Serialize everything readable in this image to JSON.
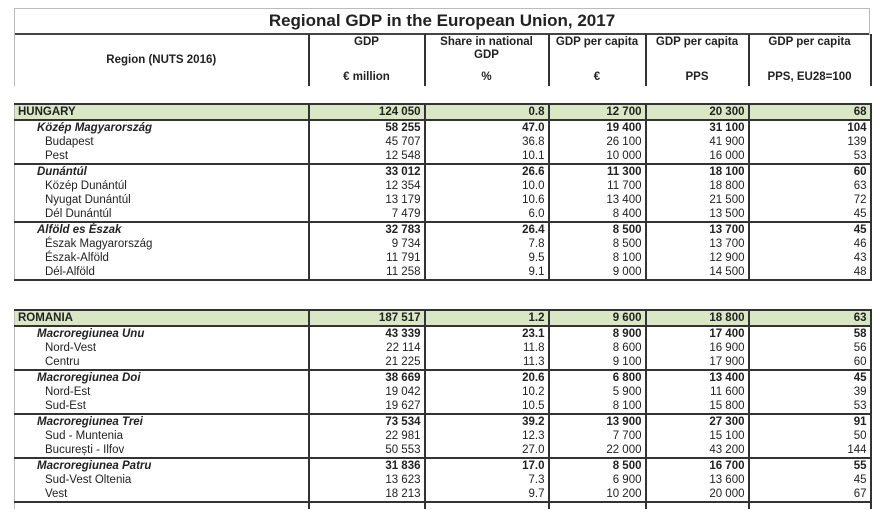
{
  "title": "Regional GDP in the European Union, 2017",
  "columns": [
    {
      "label": "Region (NUTS 2016)",
      "unit": ""
    },
    {
      "label": "GDP",
      "unit": "€ million"
    },
    {
      "label": "Share in national GDP",
      "unit": "%"
    },
    {
      "label": "GDP per capita",
      "unit": "€"
    },
    {
      "label": "GDP per capita",
      "unit": "PPS"
    },
    {
      "label": "GDP per capita",
      "unit": "PPS, EU28=100"
    }
  ],
  "countries": [
    {
      "name": "HUNGARY",
      "values": [
        "124 050",
        "0.8",
        "12 700",
        "20 300",
        "68"
      ],
      "groups": [
        {
          "name": "Közép Magyarország",
          "values": [
            "58 255",
            "47.0",
            "19 400",
            "31 100",
            "104"
          ],
          "regions": [
            {
              "name": "Budapest",
              "values": [
                "45 707",
                "36.8",
                "26 100",
                "41 900",
                "139"
              ]
            },
            {
              "name": "Pest",
              "values": [
                "12 548",
                "10.1",
                "10 000",
                "16 000",
                "53"
              ]
            }
          ]
        },
        {
          "name": "Dunántúl",
          "values": [
            "33 012",
            "26.6",
            "11 300",
            "18 100",
            "60"
          ],
          "regions": [
            {
              "name": "Közép Dunántúl",
              "values": [
                "12 354",
                "10.0",
                "11 700",
                "18 800",
                "63"
              ]
            },
            {
              "name": "Nyugat Dunántúl",
              "values": [
                "13 179",
                "10.6",
                "13 400",
                "21 500",
                "72"
              ]
            },
            {
              "name": "Dél Dunántúl",
              "values": [
                "7 479",
                "6.0",
                "8 400",
                "13 500",
                "45"
              ]
            }
          ]
        },
        {
          "name": "Alföld es Észak",
          "values": [
            "32 783",
            "26.4",
            "8 500",
            "13 700",
            "45"
          ],
          "regions": [
            {
              "name": "Észak Magyarország",
              "values": [
                "9 734",
                "7.8",
                "8 500",
                "13 700",
                "46"
              ]
            },
            {
              "name": "Észak-Alföld",
              "values": [
                "11 791",
                "9.5",
                "8 100",
                "12 900",
                "43"
              ]
            },
            {
              "name": "Dél-Alföld",
              "values": [
                "11 258",
                "9.1",
                "9 000",
                "14 500",
                "48"
              ]
            }
          ]
        }
      ]
    },
    {
      "name": "ROMANIA",
      "values": [
        "187 517",
        "1.2",
        "9 600",
        "18 800",
        "63"
      ],
      "groups": [
        {
          "name": "Macroregiunea Unu",
          "values": [
            "43 339",
            "23.1",
            "8 900",
            "17 400",
            "58"
          ],
          "regions": [
            {
              "name": "Nord-Vest",
              "values": [
                "22 114",
                "11.8",
                "8 600",
                "16 900",
                "56"
              ]
            },
            {
              "name": "Centru",
              "values": [
                "21 225",
                "11.3",
                "9 100",
                "17 900",
                "60"
              ]
            }
          ]
        },
        {
          "name": "Macroregiunea Doi",
          "values": [
            "38 669",
            "20.6",
            "6 800",
            "13 400",
            "45"
          ],
          "regions": [
            {
              "name": "Nord-Est",
              "values": [
                "19 042",
                "10.2",
                "5 900",
                "11 600",
                "39"
              ]
            },
            {
              "name": "Sud-Est",
              "values": [
                "19 627",
                "10.5",
                "8 100",
                "15 800",
                "53"
              ]
            }
          ]
        },
        {
          "name": "Macroregiunea Trei",
          "values": [
            "73 534",
            "39.2",
            "13 900",
            "27 300",
            "91"
          ],
          "regions": [
            {
              "name": "Sud - Muntenia",
              "values": [
                "22 981",
                "12.3",
                "7 700",
                "15 100",
                "50"
              ]
            },
            {
              "name": "București - Ilfov",
              "values": [
                "50 553",
                "27.0",
                "22 000",
                "43 200",
                "144"
              ]
            }
          ]
        },
        {
          "name": "Macroregiunea Patru",
          "values": [
            "31 836",
            "17.0",
            "8 500",
            "16 700",
            "55"
          ],
          "regions": [
            {
              "name": "Sud-Vest Oltenia",
              "values": [
                "13 623",
                "7.3",
                "6 900",
                "13 600",
                "45"
              ]
            },
            {
              "name": "Vest",
              "values": [
                "18 213",
                "9.7",
                "10 200",
                "20 000",
                "67"
              ]
            }
          ]
        }
      ]
    }
  ]
}
